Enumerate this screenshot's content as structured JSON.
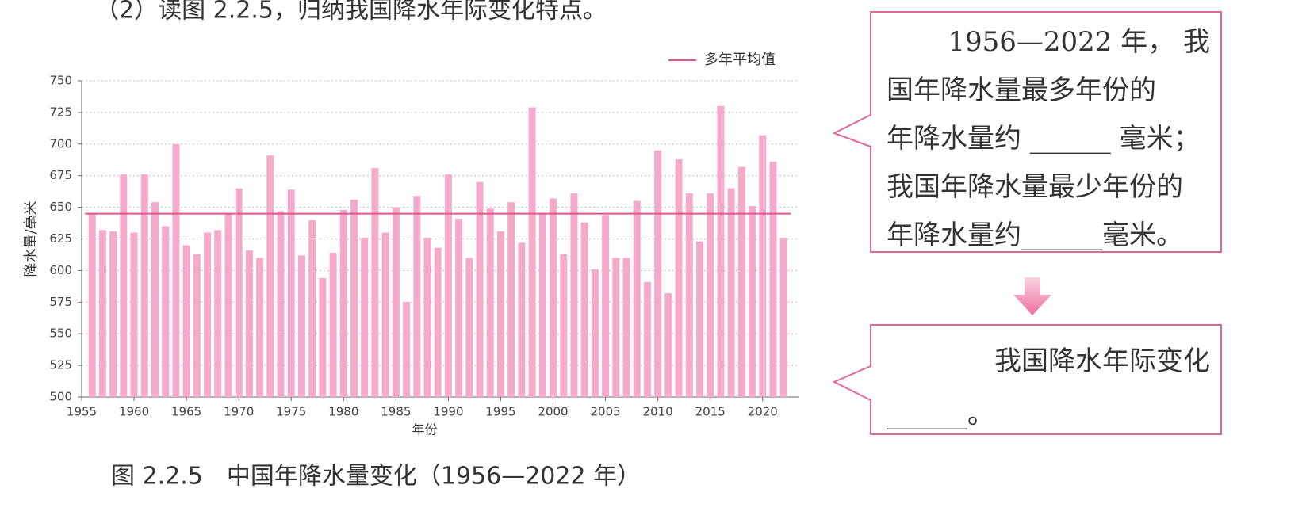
{
  "question": "（2）读图 2.2.5，归纳我国降水年际变化特点。",
  "chart_data": {
    "type": "bar",
    "x_label": "年份",
    "y_label": "降水量/毫米",
    "x": [
      1956,
      1957,
      1958,
      1959,
      1960,
      1961,
      1962,
      1963,
      1964,
      1965,
      1966,
      1967,
      1968,
      1969,
      1970,
      1971,
      1972,
      1973,
      1974,
      1975,
      1976,
      1977,
      1978,
      1979,
      1980,
      1981,
      1982,
      1983,
      1984,
      1985,
      1986,
      1987,
      1988,
      1989,
      1990,
      1991,
      1992,
      1993,
      1994,
      1995,
      1996,
      1997,
      1998,
      1999,
      2000,
      2001,
      2002,
      2003,
      2004,
      2005,
      2006,
      2007,
      2008,
      2009,
      2010,
      2011,
      2012,
      2013,
      2014,
      2015,
      2016,
      2017,
      2018,
      2019,
      2020,
      2021,
      2022
    ],
    "values": [
      645,
      632,
      631,
      676,
      630,
      676,
      654,
      635,
      700,
      620,
      613,
      630,
      632,
      645,
      665,
      616,
      610,
      691,
      647,
      664,
      612,
      640,
      594,
      614,
      648,
      656,
      626,
      681,
      630,
      650,
      575,
      659,
      626,
      618,
      676,
      641,
      610,
      670,
      649,
      631,
      654,
      622,
      729,
      645,
      657,
      613,
      661,
      638,
      601,
      644,
      610,
      610,
      655,
      591,
      695,
      582,
      688,
      661,
      623,
      661,
      730,
      665,
      682,
      651,
      707,
      686,
      626
    ],
    "color": "#f5aacb",
    "xlim": [
      1955,
      2023.5
    ],
    "ylim": [
      500,
      750
    ],
    "xticks": [
      1955,
      1960,
      1965,
      1970,
      1975,
      1980,
      1985,
      1990,
      1995,
      2000,
      2005,
      2010,
      2015,
      2020
    ],
    "yticks": [
      500,
      525,
      550,
      575,
      600,
      625,
      650,
      675,
      700,
      725,
      750
    ],
    "grid": true,
    "legend": "top-right",
    "reference_line": {
      "name": "多年平均值",
      "value": 645,
      "color": "#e6538c"
    }
  },
  "caption": "图 2.2.5　中国年降水量变化（1956—2022 年）",
  "callouts": [
    {
      "lines": [
        "1956—2022 年， 我",
        "国年降水量最多年份的",
        "年降水量约 ______ 毫米；",
        "我国年降水量最少年份的",
        "年降水量约______毫米。"
      ]
    },
    {
      "lines": [
        "我国降水年际变化",
        "______。"
      ]
    }
  ]
}
